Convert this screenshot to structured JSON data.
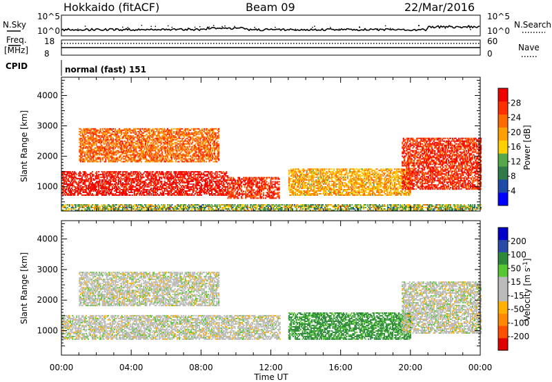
{
  "header": {
    "station": "Hokkaido (fitACF)",
    "beam": "Beam 09",
    "date": "22/Mar/2016"
  },
  "aux": {
    "nsky_label": "N.Sky",
    "nsky_ticks": [
      "10^5",
      "10^0"
    ],
    "nsearch_label": "N.Search",
    "freq_label": "Freq.",
    "freq_unit": "[MHz]",
    "freq_ticks": [
      "18",
      "8"
    ],
    "nave_label": "Nave",
    "nave_ticks": [
      "60",
      "0"
    ],
    "cpid_label": "CPID",
    "cpid_value": "normal (fast) 151"
  },
  "colors": {
    "power": [
      "#0000ff",
      "#1e4aa8",
      "#2e7a48",
      "#56a848",
      "#ffd000",
      "#ffa000",
      "#ff6a00",
      "#ff3000",
      "#f00000"
    ],
    "velocity": [
      "#e00000",
      "#ff5000",
      "#ff8a00",
      "#ffb000",
      "#bbbbbb",
      "#bbbbbb",
      "#56c832",
      "#2e8a3a",
      "#2a4aa8",
      "#0000c8"
    ]
  },
  "chart_data": [
    {
      "type": "heatmap",
      "panel": "power",
      "ylabel": "Slant Range [km]",
      "xlabel": "",
      "y_ticks": [
        1000,
        2000,
        3000,
        4000
      ],
      "ylim": [
        200,
        4600
      ],
      "xlim": [
        0,
        24
      ],
      "colorbar_label": "Power [dB]",
      "colorbar_ticks": [
        "4",
        "8",
        "12",
        "16",
        "20",
        "24",
        "28"
      ],
      "colorbar_range": [
        0,
        30
      ],
      "features": [
        {
          "t_start": 0,
          "t_end": 9.5,
          "r_low": 700,
          "r_high": 1500,
          "value": 28
        },
        {
          "t_start": 9.5,
          "t_end": 12.5,
          "r_low": 600,
          "r_high": 1300,
          "value": 26
        },
        {
          "t_start": 1,
          "t_end": 9,
          "r_low": 1800,
          "r_high": 2900,
          "value": 22
        },
        {
          "t_start": 13,
          "t_end": 20,
          "r_low": 700,
          "r_high": 1600,
          "value": 18
        },
        {
          "t_start": 19.5,
          "t_end": 24,
          "r_low": 900,
          "r_high": 2600,
          "value": 26
        },
        {
          "t_start": 0,
          "t_end": 24,
          "r_low": 200,
          "r_high": 400,
          "value": 12
        }
      ]
    },
    {
      "type": "heatmap",
      "panel": "velocity",
      "ylabel": "Slant Range [km]",
      "xlabel": "Time UT",
      "x_ticks": [
        "00:00",
        "04:00",
        "08:00",
        "12:00",
        "16:00",
        "20:00",
        "00:00"
      ],
      "y_ticks": [
        1000,
        2000,
        3000,
        4000
      ],
      "ylim": [
        200,
        4600
      ],
      "xlim": [
        0,
        24
      ],
      "colorbar_label": "Velocity [m s^-1]",
      "colorbar_ticks": [
        "-200",
        "-100",
        "-50",
        "-15",
        "15",
        "50",
        "100",
        "200"
      ],
      "features": [
        {
          "t_start": 0,
          "t_end": 12.5,
          "r_low": 700,
          "r_high": 1500,
          "value": 0
        },
        {
          "t_start": 1,
          "t_end": 9,
          "r_low": 1800,
          "r_high": 2900,
          "value": 0
        },
        {
          "t_start": 13,
          "t_end": 20,
          "r_low": 700,
          "r_high": 1600,
          "value": 60
        },
        {
          "t_start": 19.5,
          "t_end": 24,
          "r_low": 900,
          "r_high": 2600,
          "value": 0
        }
      ]
    }
  ]
}
